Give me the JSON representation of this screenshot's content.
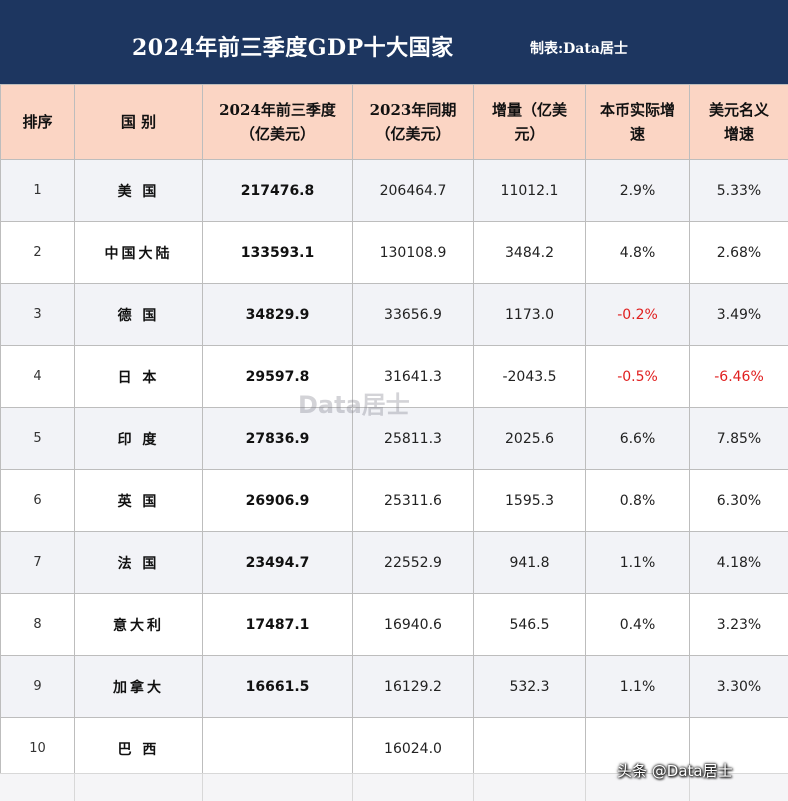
{
  "title": "2024年前三季度GDP十大国家",
  "credit": "制表:Data居士",
  "watermark": "Data居士",
  "footer_credit": "头条 @Data居士",
  "table": {
    "headers": [
      {
        "line1": "排序",
        "line2": ""
      },
      {
        "line1": "国 别",
        "line2": ""
      },
      {
        "line1": "2024年前三季度",
        "line2": "（亿美元）"
      },
      {
        "line1": "2023年同期",
        "line2": "（亿美元）"
      },
      {
        "line1": "增量（亿美",
        "line2": "元）"
      },
      {
        "line1": "本币实际增",
        "line2": "速"
      },
      {
        "line1": "美元名义",
        "line2": "增速"
      }
    ],
    "rows": [
      {
        "rank": "1",
        "country": "美 国",
        "gdp_2024": "217476.8",
        "gdp_2023": "206464.7",
        "increase": "11012.1",
        "real_growth": "2.9%",
        "usd_growth": "5.33%"
      },
      {
        "rank": "2",
        "country": "中国大陆",
        "gdp_2024": "133593.1",
        "gdp_2023": "130108.9",
        "increase": "3484.2",
        "real_growth": "4.8%",
        "usd_growth": "2.68%"
      },
      {
        "rank": "3",
        "country": "德 国",
        "gdp_2024": "34829.9",
        "gdp_2023": "33656.9",
        "increase": "1173.0",
        "real_growth": "-0.2%",
        "usd_growth": "3.49%"
      },
      {
        "rank": "4",
        "country": "日 本",
        "gdp_2024": "29597.8",
        "gdp_2023": "31641.3",
        "increase": "-2043.5",
        "real_growth": "-0.5%",
        "usd_growth": "-6.46%"
      },
      {
        "rank": "5",
        "country": "印 度",
        "gdp_2024": "27836.9",
        "gdp_2023": "25811.3",
        "increase": "2025.6",
        "real_growth": "6.6%",
        "usd_growth": "7.85%"
      },
      {
        "rank": "6",
        "country": "英 国",
        "gdp_2024": "26906.9",
        "gdp_2023": "25311.6",
        "increase": "1595.3",
        "real_growth": "0.8%",
        "usd_growth": "6.30%"
      },
      {
        "rank": "7",
        "country": "法 国",
        "gdp_2024": "23494.7",
        "gdp_2023": "22552.9",
        "increase": "941.8",
        "real_growth": "1.1%",
        "usd_growth": "4.18%"
      },
      {
        "rank": "8",
        "country": "意大利",
        "gdp_2024": "17487.1",
        "gdp_2023": "16940.6",
        "increase": "546.5",
        "real_growth": "0.4%",
        "usd_growth": "3.23%"
      },
      {
        "rank": "9",
        "country": "加拿大",
        "gdp_2024": "16661.5",
        "gdp_2023": "16129.2",
        "increase": "532.3",
        "real_growth": "1.1%",
        "usd_growth": "3.30%"
      },
      {
        "rank": "10",
        "country": "巴 西",
        "gdp_2024": "",
        "gdp_2023": "16024.0",
        "increase": "",
        "real_growth": "",
        "usd_growth": ""
      }
    ]
  },
  "colors": {
    "title_bar": "#1d3660",
    "header_bg": "#fbd5c4",
    "row_alt_bg": "#f2f3f7",
    "negative": "#e02020"
  }
}
